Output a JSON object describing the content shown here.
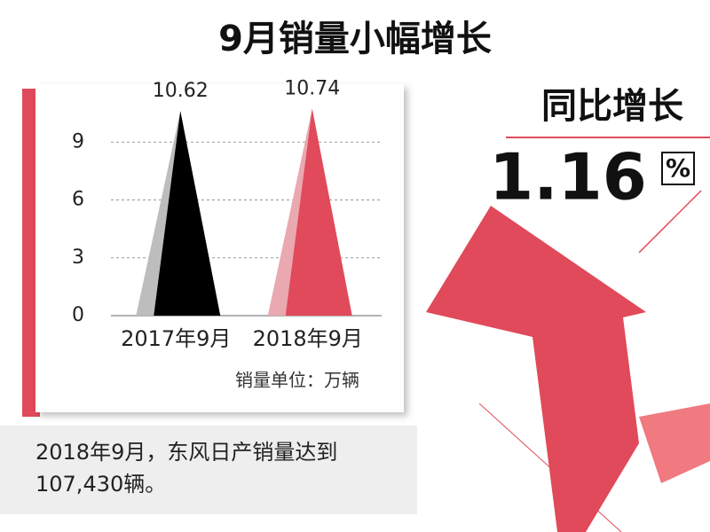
{
  "chart_data": {
    "type": "peak",
    "title": "9月销量小幅增长",
    "categories": [
      "2017年9月",
      "2018年9月"
    ],
    "values": [
      10.62,
      10.74
    ],
    "colors": [
      "#000000",
      "#e04a5a"
    ],
    "shade_colors": [
      "#bdbdbd",
      "#eaa8b0"
    ],
    "ylim": [
      0,
      12
    ],
    "yticks": [
      0,
      3,
      6,
      9
    ],
    "grid": true,
    "unit_note": "销量单位：万辆",
    "growth": {
      "label": "同比增长",
      "value": 1.16,
      "unit": "%"
    },
    "caption": "2018年9月，东风日产销量达到107,430辆。"
  }
}
